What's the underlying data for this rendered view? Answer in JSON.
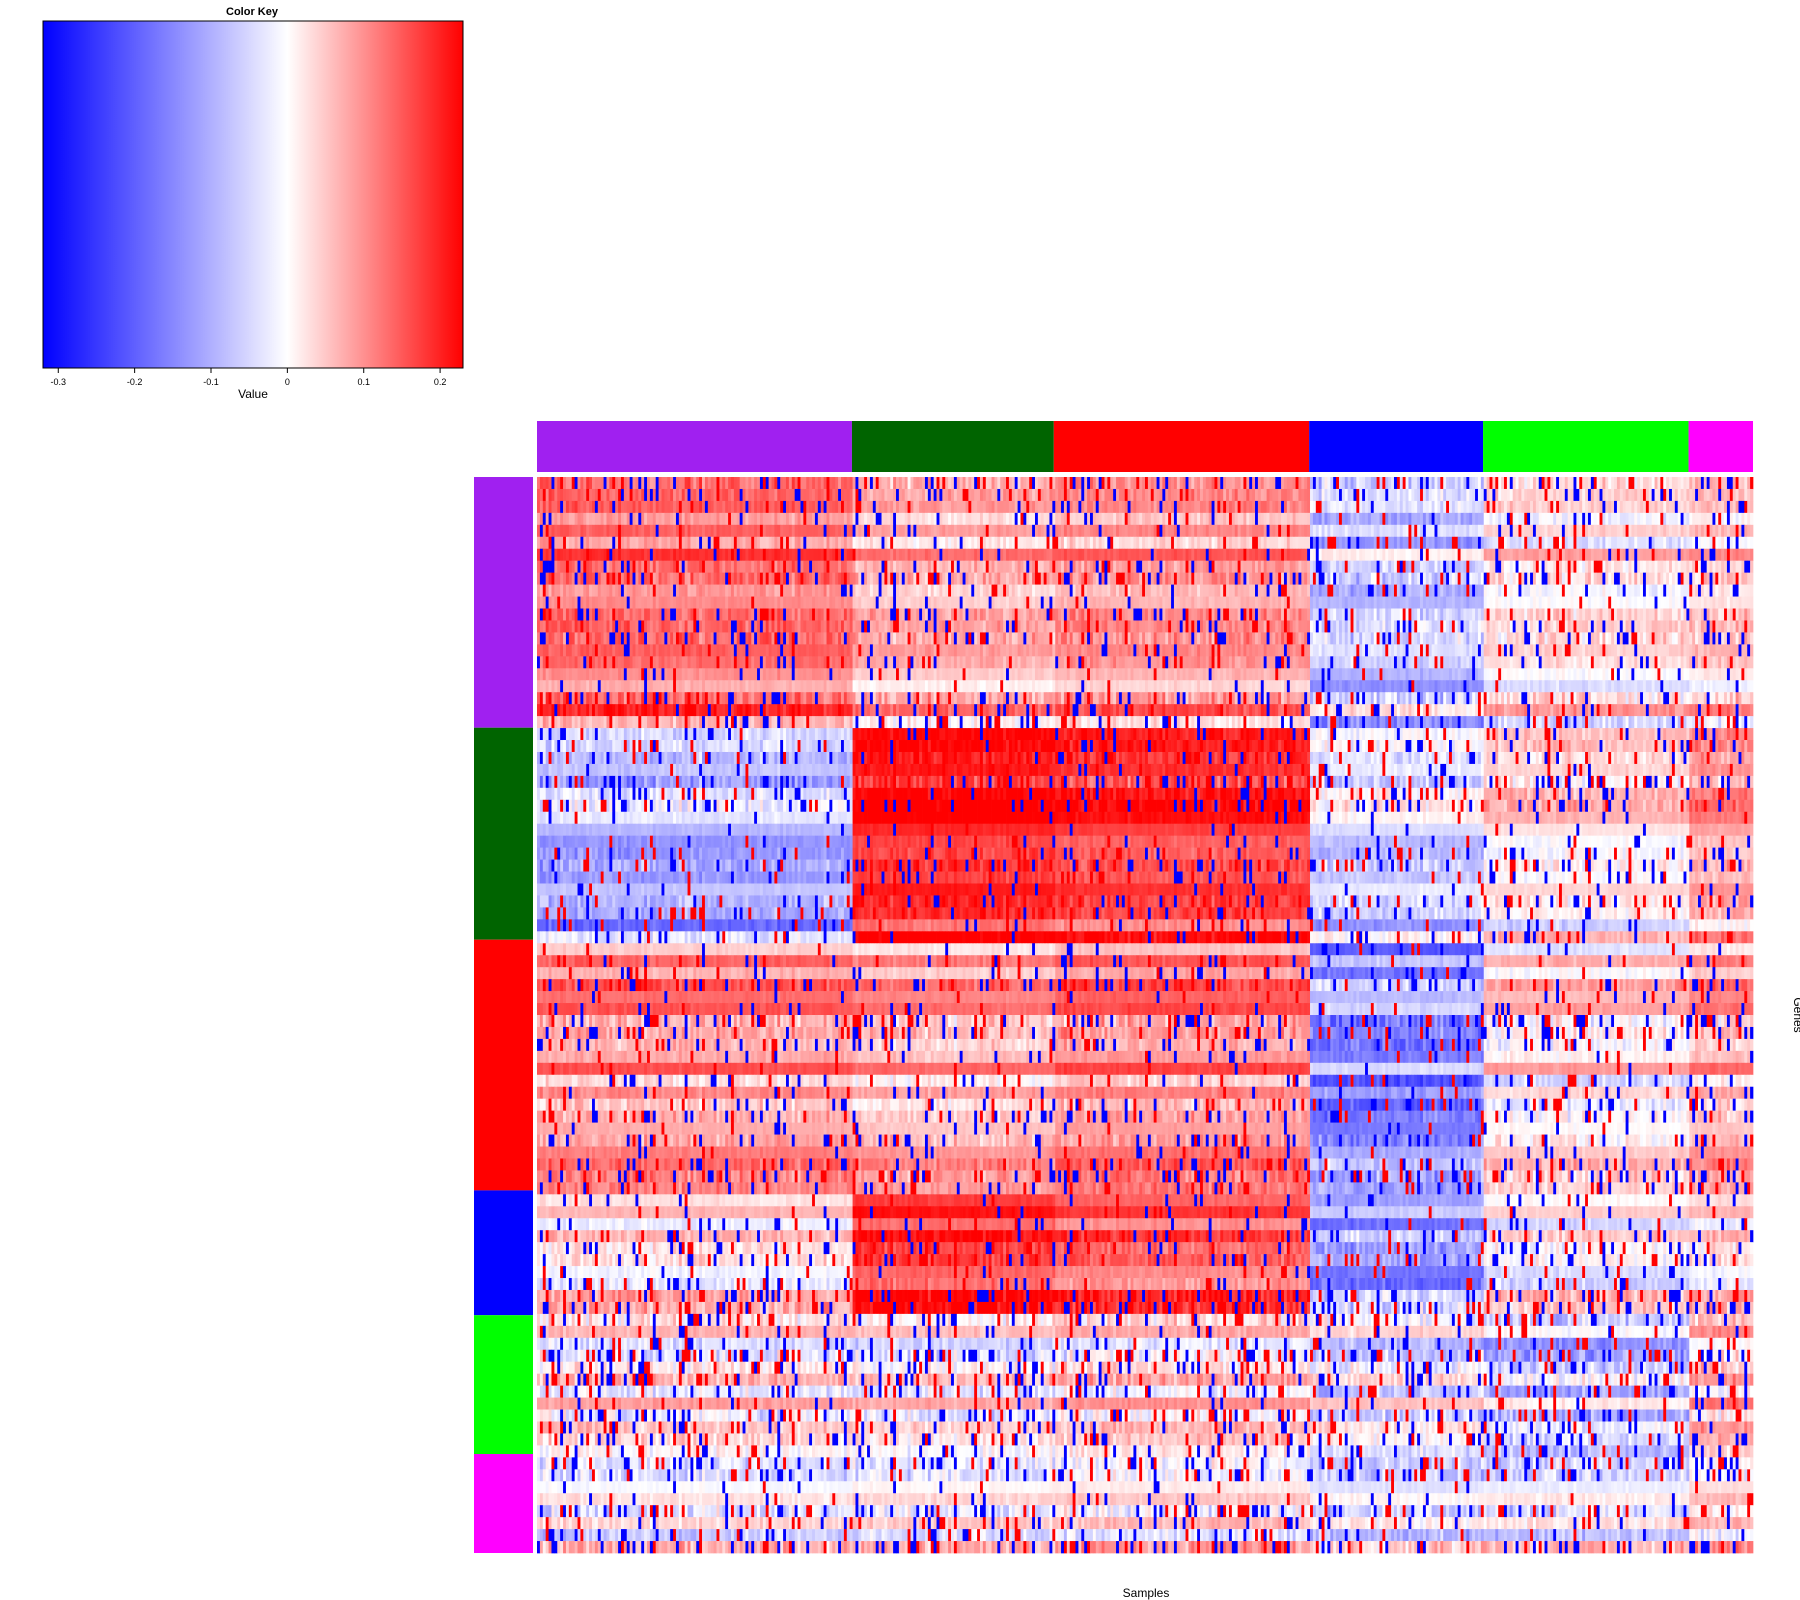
{
  "chart_data": {
    "type": "heatmap",
    "color_key": {
      "title": "Color Key",
      "xlabel": "Value",
      "range": [
        -0.32,
        0.23
      ],
      "ticks": [
        -0.3,
        -0.2,
        -0.1,
        0,
        0.1,
        0.2
      ],
      "tick_labels": [
        "-0.3",
        "-0.2",
        "-0.1",
        "0",
        "0.1",
        "0.2"
      ],
      "colors": [
        "#0000ff",
        "#ffffff",
        "#ff0000"
      ]
    },
    "xlabel": "Samples",
    "ylabel": "Genes",
    "column_clusters": [
      {
        "color": "#a020f0",
        "fraction": 0.259
      },
      {
        "color": "#006400",
        "fraction": 0.166
      },
      {
        "color": "#ff0000",
        "fraction": 0.21
      },
      {
        "color": "#0000ff",
        "fraction": 0.143
      },
      {
        "color": "#00ff00",
        "fraction": 0.169
      },
      {
        "color": "#ff00ff",
        "fraction": 0.053
      }
    ],
    "row_clusters": [
      {
        "color": "#a020f0",
        "fraction": 0.233
      },
      {
        "color": "#006400",
        "fraction": 0.197
      },
      {
        "color": "#ff0000",
        "fraction": 0.233
      },
      {
        "color": "#0000ff",
        "fraction": 0.116
      },
      {
        "color": "#00ff00",
        "fraction": 0.129
      },
      {
        "color": "#ff00ff",
        "fraction": 0.092
      }
    ],
    "n_samples": 420,
    "n_genes": 90
  }
}
